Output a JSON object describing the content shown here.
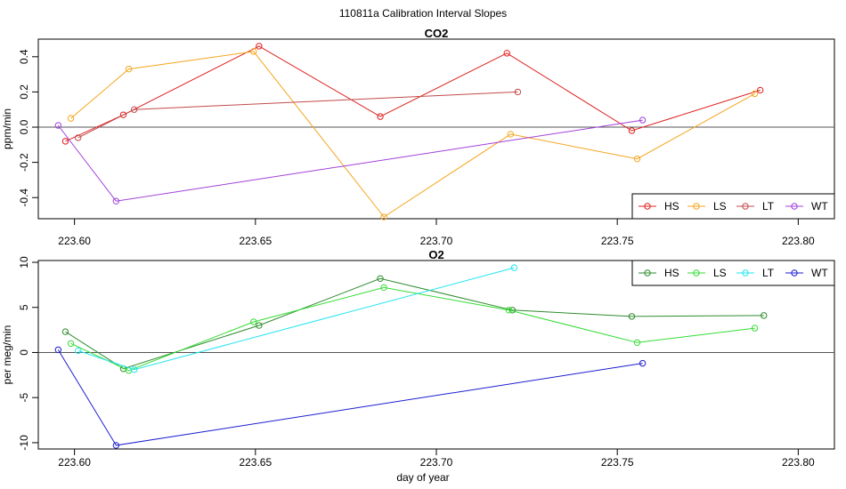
{
  "figure": {
    "title": "110811a   Calibration Interval Slopes",
    "xlabel": "day of year"
  },
  "chart_data": [
    {
      "type": "line",
      "title": "CO2",
      "ylabel": "ppm/min",
      "xlim": [
        223.59,
        223.81
      ],
      "ylim": [
        -0.52,
        0.5
      ],
      "xticks": [
        223.6,
        223.65,
        223.7,
        223.75,
        223.8
      ],
      "xtick_labels": [
        "223.60",
        "223.65",
        "223.70",
        "223.75",
        "223.80"
      ],
      "yticks": [
        -0.4,
        -0.2,
        0.0,
        0.2,
        0.4
      ],
      "ytick_labels": [
        "-0.4",
        "-0.2",
        "0.0",
        "0.2",
        "0.4"
      ],
      "hline": 0,
      "legend_position": "bottom-right",
      "series": [
        {
          "name": "HS",
          "color": "#DF2020",
          "x": [
            223.5975,
            223.6135,
            223.651,
            223.6845,
            223.7195,
            223.754,
            223.7895
          ],
          "y": [
            -0.08,
            0.07,
            0.46,
            0.06,
            0.42,
            -0.02,
            0.21
          ]
        },
        {
          "name": "LS",
          "color": "#F5A51D",
          "x": [
            223.599,
            223.615,
            223.6495,
            223.6855,
            223.7205,
            223.7555,
            223.788
          ],
          "y": [
            0.05,
            0.33,
            0.43,
            -0.51,
            -0.04,
            -0.18,
            0.19
          ]
        },
        {
          "name": "LT",
          "color": "#C24A4A",
          "x": [
            223.601,
            223.6165,
            223.7225
          ],
          "y": [
            -0.06,
            0.1,
            0.2
          ]
        },
        {
          "name": "WT",
          "color": "#A040D8",
          "x": [
            223.5955,
            223.6115,
            223.757
          ],
          "y": [
            0.01,
            -0.42,
            0.04
          ]
        }
      ]
    },
    {
      "type": "line",
      "title": "O2",
      "ylabel": "per meg/min",
      "xlim": [
        223.59,
        223.81
      ],
      "ylim": [
        -10.7,
        10.2
      ],
      "xticks": [
        223.6,
        223.65,
        223.7,
        223.75,
        223.8
      ],
      "xtick_labels": [
        "223.60",
        "223.65",
        "223.70",
        "223.75",
        "223.80"
      ],
      "yticks": [
        -10,
        -5,
        0,
        5,
        10
      ],
      "ytick_labels": [
        "-10",
        "-5",
        "0",
        "5",
        "10"
      ],
      "hline": 0,
      "legend_position": "top-right",
      "series": [
        {
          "name": "HS",
          "color": "#2E8B2E",
          "x": [
            223.5975,
            223.6135,
            223.651,
            223.6845,
            223.721,
            223.754,
            223.7905
          ],
          "y": [
            2.3,
            -1.8,
            3.0,
            8.2,
            4.7,
            4.0,
            4.1
          ]
        },
        {
          "name": "LS",
          "color": "#33DD33",
          "x": [
            223.599,
            223.615,
            223.6495,
            223.6855,
            223.72,
            223.7555,
            223.788
          ],
          "y": [
            1.0,
            -2.0,
            3.4,
            7.2,
            4.7,
            1.1,
            2.7
          ]
        },
        {
          "name": "LT",
          "color": "#22E5F0",
          "x": [
            223.601,
            223.6165,
            223.7215
          ],
          "y": [
            0.2,
            -1.9,
            9.4
          ]
        },
        {
          "name": "WT",
          "color": "#1C1CD0",
          "x": [
            223.5955,
            223.6115,
            223.757
          ],
          "y": [
            0.3,
            -10.3,
            -1.2
          ]
        }
      ]
    }
  ]
}
